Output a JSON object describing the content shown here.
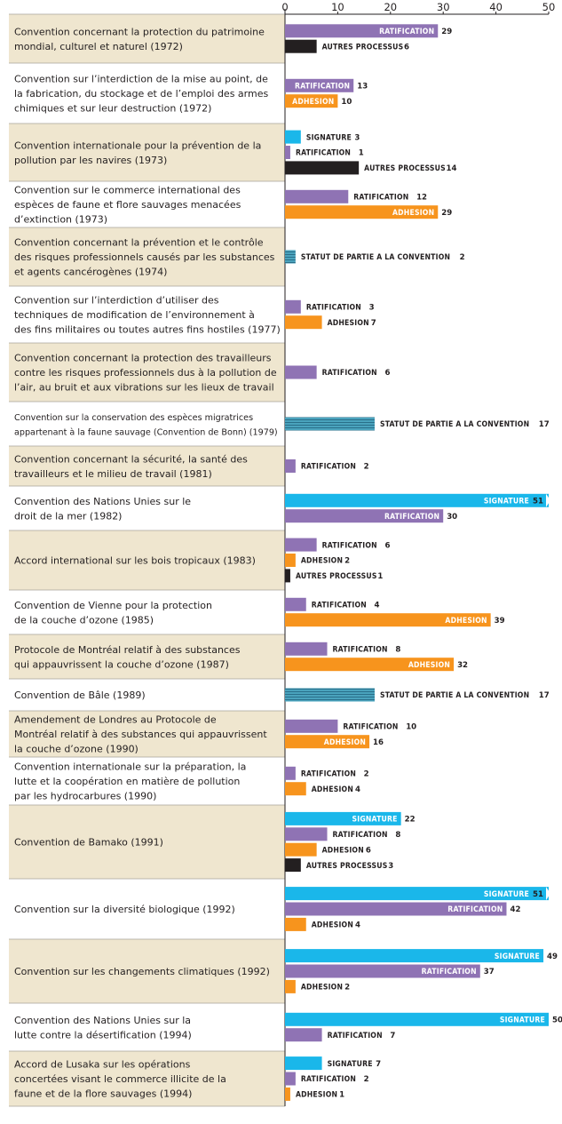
{
  "chart_data": {
    "type": "bar",
    "orientation": "horizontal",
    "xlim": [
      0,
      50
    ],
    "xticks": [
      "0",
      "10",
      "20",
      "30",
      "40",
      "50"
    ],
    "colors": {
      "SIGNATURE": "#1ab7ea",
      "RATIFICATION": "#8f73b4",
      "ADHESION": "#f7941d",
      "AUTRES PROCESSUS": "#231f20",
      "STATUT DE PARTIE A LA CONVENTION": "#3f95b0",
      "row_bg": "#efe6cf"
    },
    "rows": [
      {
        "label": [
          "Convention concernant la protection du patrimoine",
          "mondial, culturel et naturel (1972)"
        ],
        "bars": [
          {
            "name": "RATIFICATION",
            "value": 29
          },
          {
            "name": "AUTRES PROCESSUS",
            "value": 6
          }
        ]
      },
      {
        "label": [
          "Convention sur l’interdiction de la mise au point, de",
          "la fabrication, du stockage et de l’emploi des armes",
          "chimiques et sur leur destruction (1972)"
        ],
        "bars": [
          {
            "name": "RATIFICATION",
            "value": 13
          },
          {
            "name": "ADHESION",
            "value": 10
          }
        ]
      },
      {
        "label": [
          "Convention internationale pour la prévention de la",
          "pollution par les navires (1973)"
        ],
        "bars": [
          {
            "name": "SIGNATURE",
            "value": 3
          },
          {
            "name": "RATIFICATION",
            "value": 1
          },
          {
            "name": "AUTRES PROCESSUS",
            "value": 14
          }
        ]
      },
      {
        "label": [
          "Convention sur le commerce international des",
          "espèces de faune et flore sauvages menacées",
          "d’extinction (1973)"
        ],
        "bars": [
          {
            "name": "RATIFICATION",
            "value": 12
          },
          {
            "name": "ADHESION",
            "value": 29
          }
        ]
      },
      {
        "label": [
          "Convention concernant la prévention et le contrôle",
          "des risques professionnels causés par les substances",
          "et agents cancérogènes (1974)"
        ],
        "bars": [
          {
            "name": "STATUT DE PARTIE A LA CONVENTION",
            "value": 2
          }
        ]
      },
      {
        "label": [
          "Convention sur l’interdiction d’utiliser des",
          "techniques de modification de l’environnement à",
          "des fins militaires ou toutes autres fins hostiles (1977)"
        ],
        "bars": [
          {
            "name": "RATIFICATION",
            "value": 3
          },
          {
            "name": "ADHESION",
            "value": 7
          }
        ]
      },
      {
        "label": [
          "Convention concernant la protection des travailleurs",
          "contre les risques professionnels dus à la pollution de",
          "l’air, au bruit et aux vibrations sur les lieux de travail"
        ],
        "bars": [
          {
            "name": "RATIFICATION",
            "value": 6
          }
        ]
      },
      {
        "label": [
          "Convention sur la conservation des espèces migratrices",
          "appartenant à la faune sauvage (Convention de Bonn) (1979)"
        ],
        "condensed": true,
        "bars": [
          {
            "name": "STATUT DE PARTIE A LA CONVENTION",
            "value": 17
          }
        ]
      },
      {
        "label": [
          "Convention concernant la sécurité, la santé des",
          "travailleurs et le milieu de travail (1981)"
        ],
        "bars": [
          {
            "name": "RATIFICATION",
            "value": 2
          }
        ]
      },
      {
        "label": [
          "Convention des Nations Unies sur le",
          "droit de la mer (1982)"
        ],
        "bars": [
          {
            "name": "SIGNATURE",
            "value": 51
          },
          {
            "name": "RATIFICATION",
            "value": 30
          }
        ]
      },
      {
        "label": [
          "Accord international sur les bois tropicaux (1983)"
        ],
        "bars": [
          {
            "name": "RATIFICATION",
            "value": 6
          },
          {
            "name": "ADHESION",
            "value": 2
          },
          {
            "name": "AUTRES PROCESSUS",
            "value": 1
          }
        ]
      },
      {
        "label": [
          "Convention de Vienne pour la protection",
          "de la couche d’ozone (1985)"
        ],
        "bars": [
          {
            "name": "RATIFICATION",
            "value": 4
          },
          {
            "name": "ADHESION",
            "value": 39
          }
        ]
      },
      {
        "label": [
          "Protocole de Montréal relatif à des substances",
          "qui appauvrissent la couche d’ozone (1987)"
        ],
        "bars": [
          {
            "name": "RATIFICATION",
            "value": 8
          },
          {
            "name": "ADHESION",
            "value": 32
          }
        ]
      },
      {
        "label": [
          "Convention de Bâle (1989)"
        ],
        "bars": [
          {
            "name": "STATUT DE PARTIE A LA CONVENTION",
            "value": 17
          }
        ]
      },
      {
        "label": [
          "Amendement de Londres au Protocole de",
          "Montréal relatif à des substances qui appauvrissent",
          "la couche d’ozone (1990)"
        ],
        "bars": [
          {
            "name": "RATIFICATION",
            "value": 10
          },
          {
            "name": "ADHESION",
            "value": 16
          }
        ]
      },
      {
        "label": [
          "Convention internationale sur la préparation, la",
          "lutte et la coopération en matière de pollution",
          "par les hydrocarbures (1990)"
        ],
        "bars": [
          {
            "name": "RATIFICATION",
            "value": 2
          },
          {
            "name": "ADHESION",
            "value": 4
          }
        ]
      },
      {
        "label": [
          "Convention de Bamako (1991)"
        ],
        "bars": [
          {
            "name": "SIGNATURE",
            "value": 22
          },
          {
            "name": "RATIFICATION",
            "value": 8
          },
          {
            "name": "ADHESION",
            "value": 6
          },
          {
            "name": "AUTRES PROCESSUS",
            "value": 3
          }
        ]
      },
      {
        "label": [
          "Convention sur la diversité biologique (1992)"
        ],
        "bars": [
          {
            "name": "SIGNATURE",
            "value": 51
          },
          {
            "name": "RATIFICATION",
            "value": 42
          },
          {
            "name": "ADHESION",
            "value": 4
          }
        ]
      },
      {
        "label": [
          "Convention sur les changements climatiques (1992)"
        ],
        "bars": [
          {
            "name": "SIGNATURE",
            "value": 49
          },
          {
            "name": "RATIFICATION",
            "value": 37
          },
          {
            "name": "ADHESION",
            "value": 2
          }
        ]
      },
      {
        "label": [
          "Convention des Nations Unies sur la",
          "lutte contre la désertification (1994)"
        ],
        "bars": [
          {
            "name": "SIGNATURE",
            "value": 50
          },
          {
            "name": "RATIFICATION",
            "value": 7
          }
        ]
      },
      {
        "label": [
          "Accord de Lusaka sur les opérations",
          "concertées visant le commerce illicite de la",
          "faune et de la flore sauvages (1994)"
        ],
        "bars": [
          {
            "name": "SIGNATURE",
            "value": 7
          },
          {
            "name": "RATIFICATION",
            "value": 2
          },
          {
            "name": "ADHESION",
            "value": 1
          }
        ]
      }
    ]
  }
}
